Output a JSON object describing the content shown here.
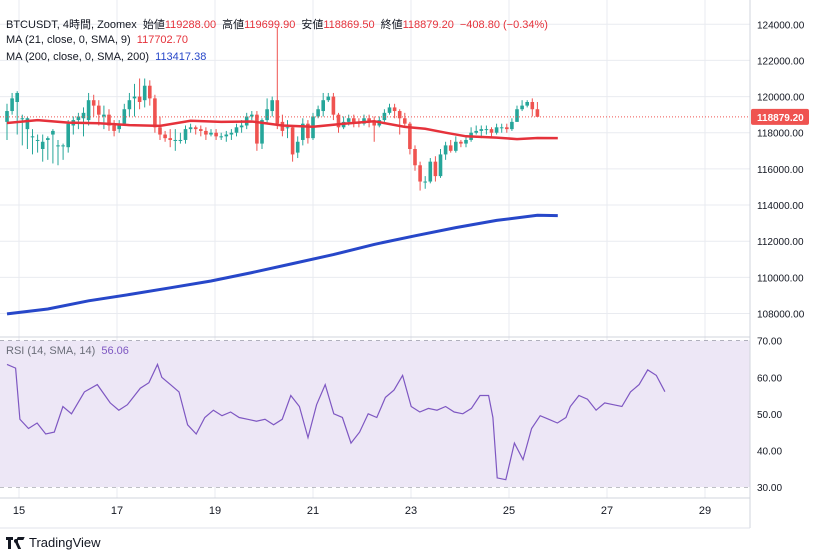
{
  "header": {
    "symbol": "BTCUSDT, 4時間, Zoomex",
    "open_label": "始値",
    "open": "119288.00",
    "high_label": "高値",
    "high": "119699.90",
    "low_label": "安値",
    "low": "118869.50",
    "close_label": "終値",
    "close": "118879.20",
    "change": "−408.80 (−0.34%)"
  },
  "ma21": {
    "label": "MA (21, close, 0, SMA, 9)",
    "value": "117702.70"
  },
  "ma200": {
    "label": "MA (200, close, 0, SMA, 200)",
    "value": "113417.38"
  },
  "rsi": {
    "label": "RSI (14, SMA, 14)",
    "value": "56.06"
  },
  "brand": "TradingView",
  "colors": {
    "up": "#26a69a",
    "down": "#ef5350",
    "ma21": "#e5323b",
    "ma200": "#2747c9",
    "rsi": "#7e57c2",
    "rsi_band": "#ede7f6",
    "grid": "#e9ebf0"
  },
  "chart_data": [
    {
      "type": "candlestick",
      "title": "BTCUSDT, 4時間, Zoomex",
      "x_ticks": [
        {
          "label": "15",
          "i": 2
        },
        {
          "label": "17",
          "i": 18
        },
        {
          "label": "19",
          "i": 34
        },
        {
          "label": "21",
          "i": 50
        },
        {
          "label": "23",
          "i": 66
        },
        {
          "label": "25",
          "i": 82
        },
        {
          "label": "27",
          "i": 98
        },
        {
          "label": "29",
          "i": 114
        }
      ],
      "y_ticks": [
        "124000.00",
        "122000.00",
        "120000.00",
        "118000.00",
        "116000.00",
        "114000.00",
        "112000.00",
        "110000.00",
        "108000.00"
      ],
      "ylim": [
        106700,
        124900
      ],
      "last_price": 118879.2,
      "last_price_label": "118879.20",
      "candles": [
        [
          118600,
          119200,
          117600,
          119600
        ],
        [
          119200,
          119900,
          119000,
          120200
        ],
        [
          119700,
          120200,
          117900,
          120300
        ],
        [
          118800,
          118800,
          117300,
          119000
        ],
        [
          118200,
          118800,
          117100,
          118900
        ],
        [
          117800,
          117800,
          116800,
          118200
        ],
        [
          117600,
          117600,
          116900,
          117900
        ],
        [
          117100,
          117500,
          116400,
          117900
        ],
        [
          117600,
          117700,
          116500,
          117800
        ],
        [
          117900,
          118100,
          116300,
          118200
        ],
        [
          117300,
          117300,
          116200,
          117600
        ],
        [
          117300,
          117300,
          116500,
          117400
        ],
        [
          117200,
          118500,
          116900,
          118700
        ],
        [
          118400,
          118700,
          117900,
          118900
        ],
        [
          118700,
          118900,
          118200,
          119100
        ],
        [
          118800,
          119100,
          117800,
          119400
        ],
        [
          118700,
          119800,
          118400,
          120200
        ],
        [
          119800,
          119500,
          118900,
          120100
        ],
        [
          119500,
          119000,
          118400,
          119800
        ],
        [
          118900,
          119000,
          118200,
          119500
        ],
        [
          119000,
          118400,
          118100,
          119300
        ],
        [
          118400,
          118100,
          117800,
          118700
        ],
        [
          118200,
          118400,
          118000,
          118700
        ],
        [
          118500,
          119300,
          118400,
          119600
        ],
        [
          119300,
          119800,
          118900,
          120200
        ],
        [
          119900,
          120000,
          118900,
          120700
        ],
        [
          120000,
          119700,
          119300,
          121000
        ],
        [
          119800,
          120600,
          119400,
          121000
        ],
        [
          120600,
          119900,
          119500,
          120900
        ],
        [
          119900,
          118300,
          118000,
          120100
        ],
        [
          118300,
          117900,
          117600,
          118900
        ],
        [
          117900,
          117700,
          117500,
          118100
        ],
        [
          117700,
          117600,
          117200,
          118200
        ],
        [
          117600,
          117600,
          117000,
          118200
        ],
        [
          117600,
          117600,
          117400,
          118000
        ],
        [
          117600,
          118200,
          117400,
          118400
        ],
        [
          118200,
          118300,
          118000,
          118500
        ],
        [
          118300,
          118200,
          117900,
          118400
        ],
        [
          118200,
          118100,
          117800,
          118400
        ],
        [
          118100,
          117900,
          117600,
          118300
        ],
        [
          117900,
          118000,
          117800,
          118200
        ],
        [
          118000,
          117800,
          117600,
          118200
        ],
        [
          117800,
          117800,
          117600,
          118000
        ],
        [
          117800,
          117900,
          117500,
          118100
        ],
        [
          117900,
          118000,
          117600,
          118200
        ],
        [
          118000,
          118300,
          117800,
          118500
        ],
        [
          118300,
          118400,
          118000,
          118700
        ],
        [
          118400,
          118900,
          118200,
          119100
        ],
        [
          118900,
          119000,
          118700,
          119200
        ],
        [
          119000,
          117400,
          117000,
          119200
        ],
        [
          117400,
          118700,
          117100,
          118800
        ],
        [
          118700,
          119300,
          118500,
          119900
        ],
        [
          119200,
          119800,
          118900,
          120000
        ],
        [
          119800,
          118500,
          118200,
          123800
        ],
        [
          118600,
          118100,
          117800,
          119000
        ],
        [
          118300,
          118300,
          117700,
          118700
        ],
        [
          118300,
          116800,
          116400,
          118400
        ],
        [
          116900,
          117500,
          116600,
          117800
        ],
        [
          117600,
          118500,
          117300,
          118800
        ],
        [
          118500,
          117700,
          117400,
          118700
        ],
        [
          117700,
          118900,
          117600,
          119100
        ],
        [
          118900,
          119300,
          118800,
          119500
        ],
        [
          119200,
          119800,
          118900,
          120200
        ],
        [
          119800,
          120000,
          119700,
          120200
        ],
        [
          120000,
          119000,
          118700,
          120200
        ],
        [
          119000,
          118300,
          118000,
          119100
        ],
        [
          118300,
          118600,
          118200,
          118900
        ],
        [
          118600,
          118800,
          118400,
          119000
        ],
        [
          118800,
          118600,
          118300,
          119000
        ],
        [
          118600,
          118500,
          118300,
          118800
        ],
        [
          118500,
          118800,
          118400,
          119000
        ],
        [
          118800,
          118600,
          118300,
          119000
        ],
        [
          118600,
          118400,
          117500,
          118900
        ],
        [
          118400,
          118700,
          118300,
          118900
        ],
        [
          118700,
          119100,
          118600,
          119300
        ],
        [
          119100,
          119400,
          119000,
          119600
        ],
        [
          119400,
          119200,
          118800,
          119600
        ],
        [
          119200,
          118800,
          117900,
          119300
        ],
        [
          118800,
          118500,
          118300,
          119100
        ],
        [
          118500,
          117100,
          116800,
          118600
        ],
        [
          117100,
          116200,
          115900,
          117300
        ],
        [
          116200,
          115300,
          114800,
          116400
        ],
        [
          115300,
          115300,
          114900,
          115600
        ],
        [
          115300,
          116400,
          115200,
          116600
        ],
        [
          116400,
          115600,
          115300,
          116700
        ],
        [
          115600,
          116800,
          115500,
          117100
        ],
        [
          116800,
          117300,
          116500,
          117500
        ],
        [
          117300,
          117000,
          116900,
          117600
        ],
        [
          117000,
          117500,
          116900,
          117800
        ],
        [
          117500,
          117400,
          117200,
          117600
        ],
        [
          117400,
          117600,
          117200,
          117800
        ],
        [
          117600,
          118000,
          117500,
          118300
        ],
        [
          118000,
          118100,
          117900,
          118400
        ],
        [
          118100,
          118200,
          117700,
          118400
        ],
        [
          118200,
          118200,
          117900,
          118400
        ],
        [
          118200,
          118000,
          117800,
          118300
        ],
        [
          118000,
          118300,
          117900,
          118500
        ],
        [
          118300,
          118300,
          118000,
          118500
        ],
        [
          118300,
          118200,
          118000,
          118500
        ],
        [
          118200,
          118600,
          118100,
          118800
        ],
        [
          118600,
          119300,
          118600,
          119500
        ],
        [
          119300,
          119500,
          119200,
          119800
        ],
        [
          119500,
          119700,
          119400,
          119800
        ],
        [
          119700,
          119300,
          118900,
          119900
        ],
        [
          119300,
          118880,
          118870,
          119700
        ]
      ],
      "ma21": [
        [
          0,
          118540
        ],
        [
          6,
          118700
        ],
        [
          12,
          118560
        ],
        [
          18,
          118520
        ],
        [
          24,
          118420
        ],
        [
          30,
          118380
        ],
        [
          36,
          118660
        ],
        [
          42,
          118600
        ],
        [
          48,
          118620
        ],
        [
          54,
          118400
        ],
        [
          60,
          118330
        ],
        [
          66,
          118500
        ],
        [
          72,
          118640
        ],
        [
          78,
          118320
        ],
        [
          82,
          118220
        ],
        [
          86,
          118000
        ],
        [
          90,
          117800
        ],
        [
          96,
          117730
        ],
        [
          100,
          117650
        ],
        [
          104,
          117710
        ],
        [
          108,
          117703
        ]
      ],
      "ma200": [
        [
          0,
          107980
        ],
        [
          8,
          108250
        ],
        [
          16,
          108700
        ],
        [
          24,
          109050
        ],
        [
          32,
          109420
        ],
        [
          40,
          109800
        ],
        [
          48,
          110260
        ],
        [
          56,
          110760
        ],
        [
          64,
          111260
        ],
        [
          72,
          111820
        ],
        [
          80,
          112300
        ],
        [
          88,
          112750
        ],
        [
          96,
          113150
        ],
        [
          104,
          113430
        ],
        [
          108,
          113417
        ]
      ]
    },
    {
      "type": "line",
      "title": "RSI (14, SMA, 14)",
      "ylim": [
        27,
        71
      ],
      "y_ticks": [
        "70.00",
        "60.00",
        "50.00",
        "40.00",
        "30.00"
      ],
      "band": [
        30,
        70
      ],
      "midline": 50,
      "rsi": [
        [
          0,
          63.5
        ],
        [
          2,
          62.5
        ],
        [
          3,
          48.5
        ],
        [
          5,
          46
        ],
        [
          7,
          47.5
        ],
        [
          9,
          44.5
        ],
        [
          11,
          45
        ],
        [
          13,
          52
        ],
        [
          15,
          50
        ],
        [
          18,
          56
        ],
        [
          21,
          58
        ],
        [
          24,
          53
        ],
        [
          26,
          51
        ],
        [
          28,
          52.5
        ],
        [
          31,
          57
        ],
        [
          33,
          58.5
        ],
        [
          35,
          63.5
        ],
        [
          36,
          60
        ],
        [
          38,
          58
        ],
        [
          40,
          56
        ],
        [
          42,
          47
        ],
        [
          44,
          44.5
        ],
        [
          46,
          49
        ],
        [
          48,
          51
        ],
        [
          50,
          49.5
        ],
        [
          52,
          50.5
        ],
        [
          54,
          49
        ],
        [
          56,
          48.5
        ],
        [
          58,
          48
        ],
        [
          60,
          48.5
        ],
        [
          62,
          47
        ],
        [
          64,
          48.5
        ],
        [
          66,
          55
        ],
        [
          68,
          52
        ],
        [
          70,
          43.5
        ],
        [
          72,
          52.5
        ],
        [
          74,
          58
        ],
        [
          76,
          50
        ],
        [
          78,
          49
        ],
        [
          80,
          42
        ],
        [
          82,
          45
        ],
        [
          84,
          50
        ],
        [
          86,
          49
        ],
        [
          88,
          54.5
        ],
        [
          90,
          56.5
        ],
        [
          92,
          60.5
        ],
        [
          94,
          52
        ],
        [
          96,
          50.5
        ],
        [
          98,
          51.5
        ],
        [
          100,
          51
        ],
        [
          102,
          52
        ],
        [
          104,
          50.5
        ],
        [
          106,
          50
        ],
        [
          108,
          51.5
        ],
        [
          110,
          55
        ],
        [
          112,
          55
        ],
        [
          113,
          49
        ],
        [
          114,
          32.5
        ],
        [
          116,
          32
        ],
        [
          118,
          42
        ],
        [
          120,
          37.5
        ],
        [
          122,
          46
        ],
        [
          124,
          49.5
        ],
        [
          126,
          48.5
        ],
        [
          128,
          47.5
        ],
        [
          130,
          49
        ],
        [
          131,
          52
        ],
        [
          133,
          55
        ],
        [
          135,
          54
        ],
        [
          137,
          51
        ],
        [
          139,
          53
        ],
        [
          141,
          52.5
        ],
        [
          143,
          52
        ],
        [
          145,
          56
        ],
        [
          147,
          58
        ],
        [
          149,
          62
        ],
        [
          151,
          60.5
        ],
        [
          153,
          56.06
        ]
      ]
    }
  ]
}
